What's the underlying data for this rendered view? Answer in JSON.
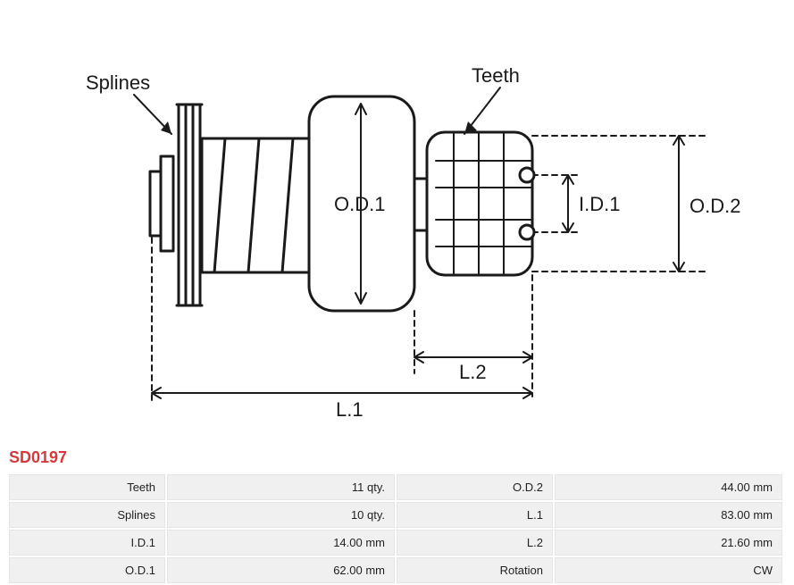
{
  "partNumber": "SD0197",
  "diagram": {
    "labels": {
      "splines": "Splines",
      "teeth": "Teeth",
      "od1": "O.D.1",
      "od2": "O.D.2",
      "id1": "I.D.1",
      "l1": "L.1",
      "l2": "L.2"
    },
    "style": {
      "stroke": "#1a1a1a",
      "strokeWidth": 3,
      "thinStroke": 2,
      "dash": "6,5",
      "bg": "#ffffff"
    }
  },
  "specs": {
    "rows": [
      {
        "k1": "Teeth",
        "v1": "11 qty.",
        "k2": "O.D.2",
        "v2": "44.00 mm"
      },
      {
        "k1": "Splines",
        "v1": "10 qty.",
        "k2": "L.1",
        "v2": "83.00 mm"
      },
      {
        "k1": "I.D.1",
        "v1": "14.00 mm",
        "k2": "L.2",
        "v2": "21.60 mm"
      },
      {
        "k1": "O.D.1",
        "v1": "62.00 mm",
        "k2": "Rotation",
        "v2": "CW"
      }
    ]
  }
}
